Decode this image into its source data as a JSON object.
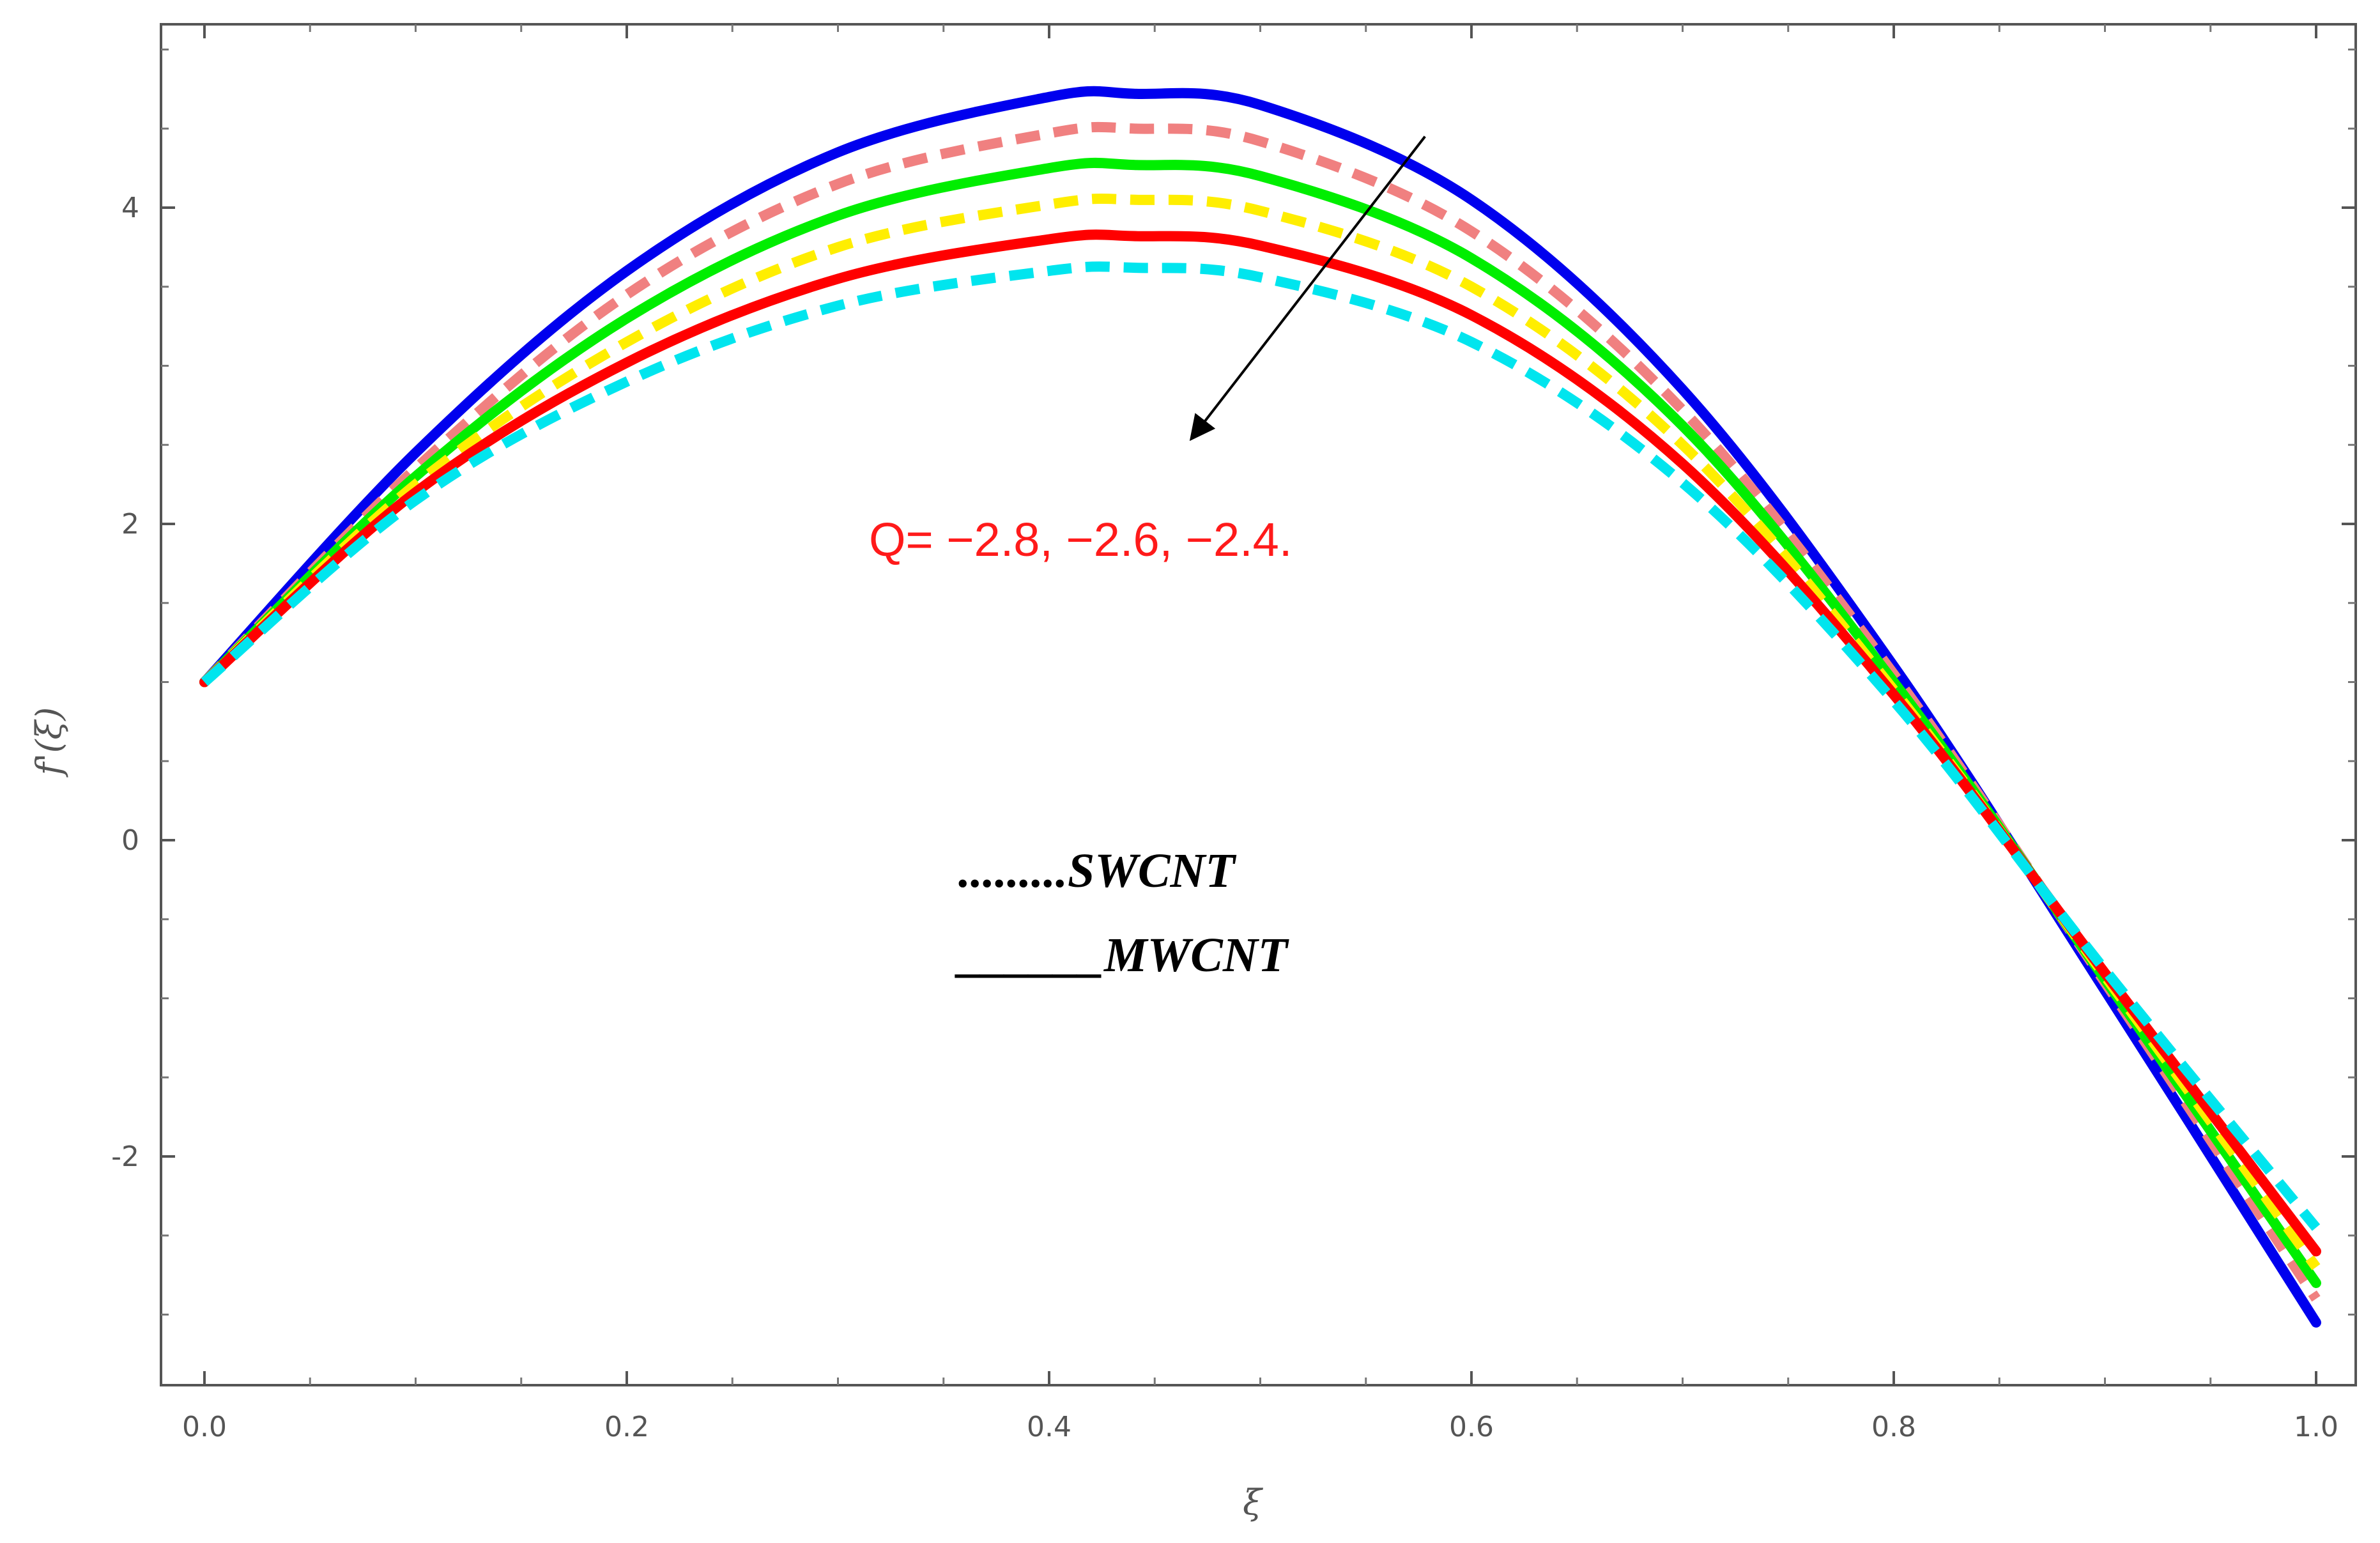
{
  "chart_data": {
    "type": "line",
    "title": "",
    "xlabel": "ξ",
    "ylabel": "f'(ξ)",
    "xlim": [
      0,
      1
    ],
    "ylim": [
      -3.35,
      5.2
    ],
    "x_ticks": [
      0.0,
      0.2,
      0.4,
      0.6,
      0.8,
      1.0
    ],
    "x_tick_labels": [
      "0.0",
      "0.2",
      "0.4",
      "0.6",
      "0.8",
      "1.0"
    ],
    "y_ticks": [
      -2,
      0,
      2,
      4
    ],
    "y_tick_labels": [
      "-2",
      "0",
      "2",
      "4"
    ],
    "grid": false,
    "x": [
      0,
      0.1,
      0.2,
      0.3,
      0.4,
      0.44,
      0.5,
      0.6,
      0.7,
      0.8,
      0.9,
      1.0
    ],
    "series": [
      {
        "color": "#0000ee",
        "style": "solid",
        "values": [
          1.0,
          2.45,
          3.6,
          4.35,
          4.7,
          4.72,
          4.65,
          4.05,
          2.85,
          1.1,
          -0.95,
          -3.05
        ]
      },
      {
        "color": "#f08080",
        "style": "dashed",
        "values": [
          1.0,
          2.35,
          3.45,
          4.15,
          4.47,
          4.5,
          4.42,
          3.85,
          2.72,
          1.05,
          -0.9,
          -2.9
        ]
      },
      {
        "color": "#00ee00",
        "style": "solid",
        "values": [
          1.0,
          2.3,
          3.3,
          3.95,
          4.25,
          4.27,
          4.2,
          3.68,
          2.62,
          1.0,
          -0.88,
          -2.8
        ]
      },
      {
        "color": "#ffee00",
        "style": "dashed",
        "values": [
          1.0,
          2.25,
          3.15,
          3.75,
          4.02,
          4.05,
          3.98,
          3.5,
          2.5,
          0.95,
          -0.86,
          -2.7
        ]
      },
      {
        "color": "#ff0000",
        "style": "solid",
        "values": [
          1.0,
          2.2,
          3.02,
          3.55,
          3.8,
          3.82,
          3.76,
          3.32,
          2.38,
          0.92,
          -0.84,
          -2.6
        ]
      },
      {
        "color": "#00e5ee",
        "style": "dashed",
        "values": [
          1.0,
          2.15,
          2.9,
          3.38,
          3.6,
          3.62,
          3.56,
          3.15,
          2.26,
          0.88,
          -0.82,
          -2.45
        ]
      }
    ],
    "annotation": {
      "text": "Q= −2.8, −2.6, −2.4.",
      "arrow_from": [
        0.578,
        4.45
      ],
      "arrow_to": [
        0.468,
        2.55
      ],
      "color": "#ff1a1a"
    },
    "legend": {
      "placement": "center-left",
      "entries": [
        {
          "label": ".........SWCNT",
          "style": "dotted"
        },
        {
          "label": "______MWCNT",
          "style": "solid"
        }
      ]
    }
  }
}
